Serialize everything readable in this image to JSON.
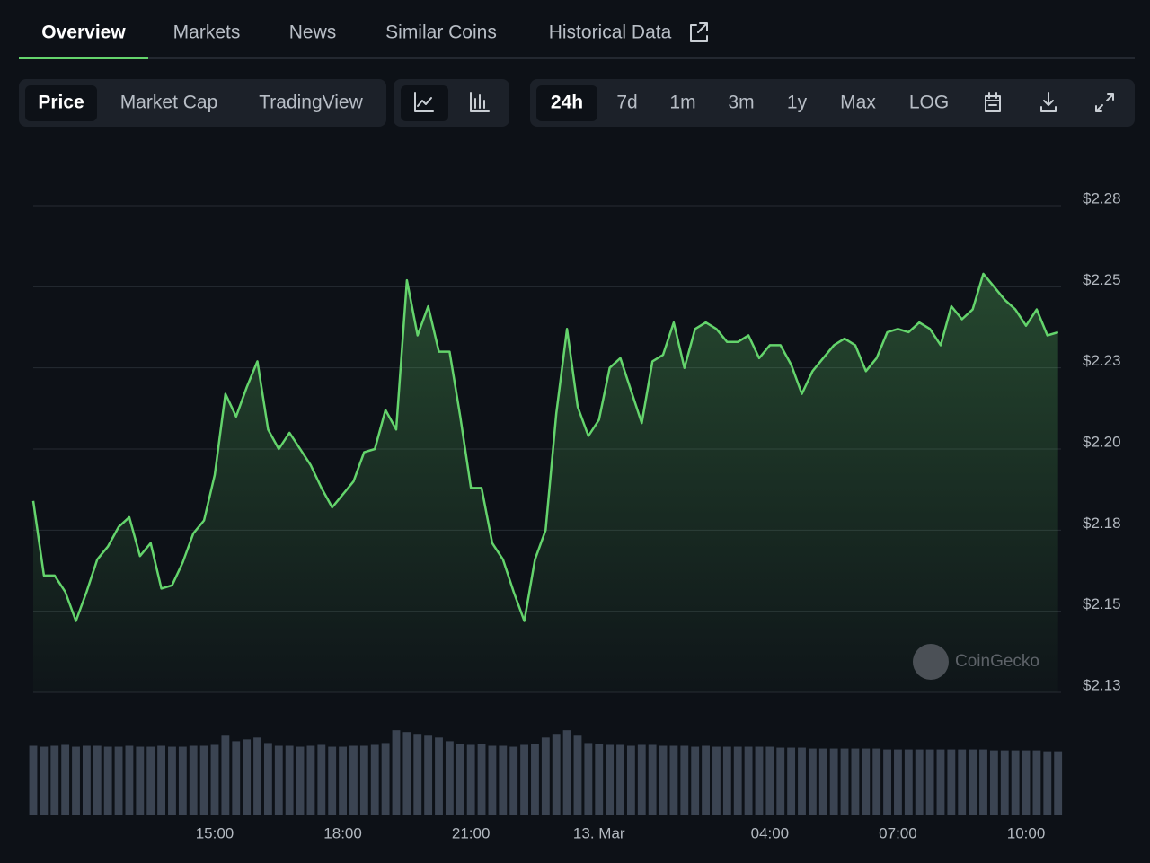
{
  "tabs": [
    "Overview",
    "Markets",
    "News",
    "Similar Coins",
    "Historical Data"
  ],
  "chart_modes": [
    "Price",
    "Market Cap",
    "TradingView"
  ],
  "ranges": [
    "24h",
    "7d",
    "1m",
    "3m",
    "1y",
    "Max",
    "LOG"
  ],
  "watermark": "CoinGecko",
  "chart_data": {
    "type": "line",
    "x": [
      10.75,
      11,
      11.25,
      11.5,
      11.75,
      12,
      12.25,
      12.5,
      12.75,
      13,
      13.25,
      13.5,
      13.75,
      14,
      14.25,
      14.5,
      14.75,
      15,
      15.25,
      15.5,
      15.75,
      16,
      16.25,
      16.5,
      16.75,
      17,
      17.25,
      17.5,
      17.75,
      18,
      18.25,
      18.5,
      18.75,
      19,
      19.25,
      19.5,
      19.75,
      20,
      20.25,
      20.5,
      20.75,
      21,
      21.25,
      21.5,
      21.75,
      22,
      22.25,
      22.5,
      22.75,
      23,
      23.25,
      23.5,
      23.75,
      24,
      24.25,
      24.5,
      24.75,
      25,
      25.25,
      25.5,
      25.75,
      26,
      26.25,
      26.5,
      26.75,
      27,
      27.25,
      27.5,
      27.75,
      28,
      28.25,
      28.5,
      28.75,
      29,
      29.25,
      29.5,
      29.75,
      30,
      30.25,
      30.5,
      30.75,
      31,
      31.25,
      31.5,
      31.75,
      32,
      32.25,
      32.5,
      32.75,
      33,
      33.25,
      33.5,
      33.75,
      34,
      34.25,
      34.5,
      34.75
    ],
    "xlim": [
      10.75,
      34.82
    ],
    "xticks": [
      {
        "value": 15,
        "label": "15:00"
      },
      {
        "value": 18,
        "label": "18:00"
      },
      {
        "value": 21,
        "label": "21:00"
      },
      {
        "value": 24,
        "label": "13. Mar"
      },
      {
        "value": 28,
        "label": "04:00"
      },
      {
        "value": 31,
        "label": "07:00"
      },
      {
        "value": 34,
        "label": "10:00"
      }
    ],
    "ylim": [
      2.125,
      2.275
    ],
    "yticks": [
      {
        "value": 2.125,
        "label": "$2.13"
      },
      {
        "value": 2.15,
        "label": "$2.15"
      },
      {
        "value": 2.175,
        "label": "$2.18"
      },
      {
        "value": 2.2,
        "label": "$2.20"
      },
      {
        "value": 2.225,
        "label": "$2.23"
      },
      {
        "value": 2.25,
        "label": "$2.25"
      },
      {
        "value": 2.275,
        "label": "$2.28"
      }
    ],
    "grid": true,
    "series": [
      {
        "color": "#64d46c",
        "values": [
          2.184,
          2.161,
          2.161,
          2.156,
          2.147,
          2.156,
          2.166,
          2.17,
          2.176,
          2.179,
          2.167,
          2.171,
          2.157,
          2.158,
          2.165,
          2.174,
          2.178,
          2.192,
          2.217,
          2.21,
          2.219,
          2.227,
          2.206,
          2.2,
          2.205,
          2.2,
          2.195,
          2.188,
          2.182,
          2.186,
          2.19,
          2.199,
          2.2,
          2.212,
          2.206,
          2.252,
          2.235,
          2.244,
          2.23,
          2.23,
          2.21,
          2.188,
          2.188,
          2.171,
          2.166,
          2.156,
          2.147,
          2.166,
          2.175,
          2.211,
          2.237,
          2.213,
          2.204,
          2.209,
          2.225,
          2.228,
          2.218,
          2.208,
          2.227,
          2.229,
          2.239,
          2.225,
          2.237,
          2.239,
          2.237,
          2.233,
          2.233,
          2.235,
          2.228,
          2.232,
          2.232,
          2.226,
          2.217,
          2.224,
          2.228,
          2.232,
          2.234,
          2.232,
          2.224,
          2.228,
          2.236,
          2.237,
          2.236,
          2.239,
          2.237,
          2.232,
          2.244,
          2.24,
          2.243,
          2.254,
          2.25,
          2.246,
          2.243,
          2.238,
          2.243,
          2.235,
          2.236
        ]
      }
    ],
    "volume": {
      "color": "#3b4452",
      "ylim": [
        0,
        100
      ],
      "values": [
        75,
        74,
        75,
        76,
        74,
        75,
        75,
        74,
        74,
        75,
        74,
        74,
        75,
        74,
        74,
        75,
        75,
        76,
        86,
        80,
        82,
        84,
        78,
        75,
        75,
        74,
        75,
        76,
        74,
        74,
        75,
        75,
        76,
        78,
        92,
        90,
        88,
        86,
        84,
        80,
        77,
        76,
        77,
        75,
        75,
        74,
        76,
        77,
        84,
        88,
        92,
        86,
        78,
        77,
        76,
        76,
        75,
        76,
        76,
        75,
        75,
        75,
        74,
        75,
        74,
        74,
        74,
        74,
        74,
        74,
        73,
        73,
        73,
        72,
        72,
        72,
        72,
        72,
        72,
        72,
        71,
        71,
        71,
        71,
        71,
        71,
        71,
        71,
        71,
        71,
        70,
        70,
        70,
        70,
        70,
        69,
        69
      ]
    }
  }
}
